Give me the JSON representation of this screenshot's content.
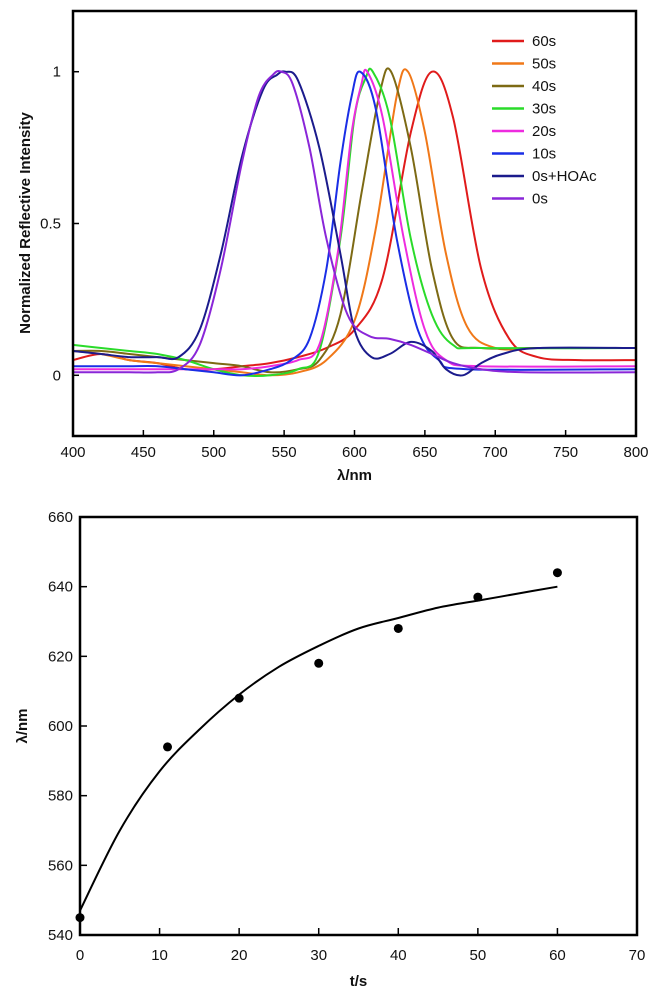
{
  "chart_data": [
    {
      "type": "line",
      "xlabel": "λ/nm",
      "ylabel": "Normalized Reflective Intensity",
      "xlim": [
        400,
        800
      ],
      "ylim": [
        -0.2,
        1.2
      ],
      "xticks": [
        "400",
        "450",
        "500",
        "550",
        "600",
        "650",
        "700",
        "750",
        "800"
      ],
      "yticks": [
        "0",
        "0.5",
        "1"
      ],
      "legend_position": "top-right",
      "series": [
        {
          "name": "60s",
          "color": "#e01b1b",
          "peak": 655,
          "sigma": 22,
          "x": [
            400,
            420,
            440,
            460,
            480,
            500,
            520,
            540,
            560,
            580,
            600,
            620,
            640,
            655,
            670,
            690,
            710,
            730,
            760,
            800
          ],
          "y": [
            0.05,
            0.07,
            0.05,
            0.04,
            0.02,
            0.02,
            0.03,
            0.04,
            0.06,
            0.09,
            0.15,
            0.32,
            0.8,
            1.0,
            0.85,
            0.35,
            0.12,
            0.06,
            0.05,
            0.05
          ]
        },
        {
          "name": "50s",
          "color": "#f07818",
          "peak": 638,
          "sigma": 22,
          "x": [
            400,
            420,
            440,
            460,
            480,
            500,
            520,
            540,
            560,
            580,
            600,
            615,
            630,
            638,
            650,
            665,
            680,
            700,
            730,
            800
          ],
          "y": [
            0.08,
            0.07,
            0.05,
            0.04,
            0.03,
            0.02,
            0.01,
            0.0,
            0.01,
            0.05,
            0.18,
            0.48,
            0.92,
            1.0,
            0.8,
            0.4,
            0.16,
            0.09,
            0.09,
            0.09
          ]
        },
        {
          "name": "40s",
          "color": "#7d6a14",
          "peak": 626,
          "sigma": 20,
          "x": [
            400,
            420,
            440,
            460,
            480,
            500,
            520,
            540,
            560,
            575,
            590,
            605,
            618,
            626,
            640,
            655,
            670,
            690,
            730,
            800
          ],
          "y": [
            0.08,
            0.08,
            0.07,
            0.06,
            0.05,
            0.04,
            0.03,
            0.01,
            0.02,
            0.05,
            0.2,
            0.6,
            0.93,
            1.0,
            0.75,
            0.35,
            0.12,
            0.09,
            0.09,
            0.09
          ]
        },
        {
          "name": "30s",
          "color": "#2adb2a",
          "peak": 613,
          "sigma": 20,
          "x": [
            400,
            420,
            440,
            460,
            480,
            500,
            520,
            540,
            560,
            575,
            590,
            600,
            608,
            613,
            625,
            640,
            655,
            670,
            690,
            800
          ],
          "y": [
            0.1,
            0.09,
            0.08,
            0.07,
            0.05,
            0.02,
            0.0,
            0.0,
            0.02,
            0.08,
            0.45,
            0.85,
            0.98,
            1.0,
            0.85,
            0.45,
            0.2,
            0.1,
            0.09,
            0.09
          ]
        },
        {
          "name": "20s",
          "color": "#ee2bdf",
          "peak": 609,
          "sigma": 20,
          "x": [
            400,
            420,
            440,
            460,
            480,
            500,
            520,
            540,
            560,
            575,
            588,
            598,
            605,
            609,
            620,
            635,
            650,
            665,
            690,
            800
          ],
          "y": [
            0.02,
            0.02,
            0.02,
            0.02,
            0.02,
            0.02,
            0.02,
            0.03,
            0.05,
            0.1,
            0.4,
            0.8,
            0.96,
            1.0,
            0.85,
            0.45,
            0.15,
            0.05,
            0.03,
            0.03
          ]
        },
        {
          "name": "10s",
          "color": "#1a2ee6",
          "peak": 604,
          "sigma": 20,
          "x": [
            400,
            420,
            440,
            460,
            480,
            500,
            520,
            540,
            555,
            568,
            580,
            590,
            598,
            604,
            615,
            630,
            645,
            660,
            680,
            800
          ],
          "y": [
            0.03,
            0.03,
            0.03,
            0.03,
            0.02,
            0.01,
            0.0,
            0.02,
            0.05,
            0.12,
            0.35,
            0.7,
            0.92,
            1.0,
            0.88,
            0.45,
            0.15,
            0.05,
            0.02,
            0.02
          ]
        },
        {
          "name": "0s+HOAc",
          "color": "#1b1b8c",
          "peak": 551,
          "sigma": 22,
          "x": [
            400,
            420,
            440,
            460,
            475,
            490,
            505,
            520,
            535,
            545,
            551,
            560,
            575,
            590,
            600,
            612,
            625,
            640,
            655,
            665,
            677,
            690,
            705,
            730,
            800
          ],
          "y": [
            0.08,
            0.07,
            0.06,
            0.06,
            0.06,
            0.15,
            0.4,
            0.72,
            0.94,
            0.99,
            1.0,
            0.97,
            0.75,
            0.4,
            0.15,
            0.06,
            0.07,
            0.11,
            0.08,
            0.02,
            0.0,
            0.04,
            0.07,
            0.09,
            0.09
          ]
        },
        {
          "name": "0s",
          "color": "#8a26d8",
          "peak": 548,
          "sigma": 22,
          "x": [
            400,
            420,
            440,
            460,
            475,
            490,
            505,
            520,
            532,
            542,
            548,
            556,
            568,
            580,
            595,
            610,
            625,
            640,
            655,
            670,
            690,
            720,
            800
          ],
          "y": [
            0.01,
            0.01,
            0.01,
            0.01,
            0.02,
            0.1,
            0.35,
            0.7,
            0.92,
            0.99,
            1.0,
            0.96,
            0.75,
            0.45,
            0.2,
            0.13,
            0.12,
            0.1,
            0.07,
            0.04,
            0.02,
            0.01,
            0.01
          ]
        }
      ]
    },
    {
      "type": "scatter",
      "xlabel": "t/s",
      "ylabel": "λ/nm",
      "xlim": [
        0,
        70
      ],
      "ylim": [
        540,
        660
      ],
      "xticks": [
        "0",
        "10",
        "20",
        "30",
        "40",
        "50",
        "60",
        "70"
      ],
      "yticks": [
        "540",
        "560",
        "580",
        "600",
        "620",
        "640",
        "660"
      ],
      "points": {
        "x": [
          0,
          11,
          20,
          30,
          40,
          50,
          60
        ],
        "y": [
          545,
          594,
          608,
          618,
          628,
          637,
          644
        ]
      },
      "fit": {
        "x": [
          0,
          5,
          10,
          15,
          20,
          25,
          30,
          35,
          40,
          45,
          50,
          55,
          60
        ],
        "y": [
          547,
          570,
          587,
          599,
          609,
          617,
          623,
          628,
          631,
          634,
          636,
          638,
          640
        ]
      }
    }
  ]
}
